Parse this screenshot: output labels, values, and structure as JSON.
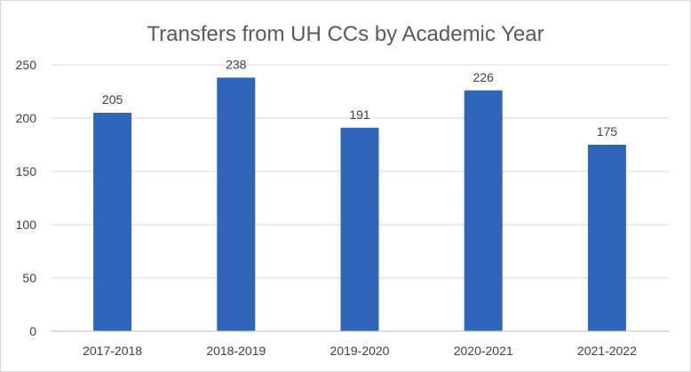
{
  "chart_data": {
    "type": "bar",
    "title": "Transfers from UH CCs by Academic Year",
    "categories": [
      "2017-2018",
      "2018-2019",
      "2019-2020",
      "2020-2021",
      "2021-2022"
    ],
    "values": [
      205,
      238,
      191,
      226,
      175
    ],
    "data_labels": [
      "205",
      "238",
      "191",
      "226",
      "175"
    ],
    "y_ticks": [
      "0",
      "50",
      "100",
      "150",
      "200",
      "250"
    ],
    "ylim": [
      0,
      250
    ],
    "grid": true,
    "legend": "none",
    "bar_color": "#2f66b9",
    "xlabel": "",
    "ylabel": ""
  }
}
